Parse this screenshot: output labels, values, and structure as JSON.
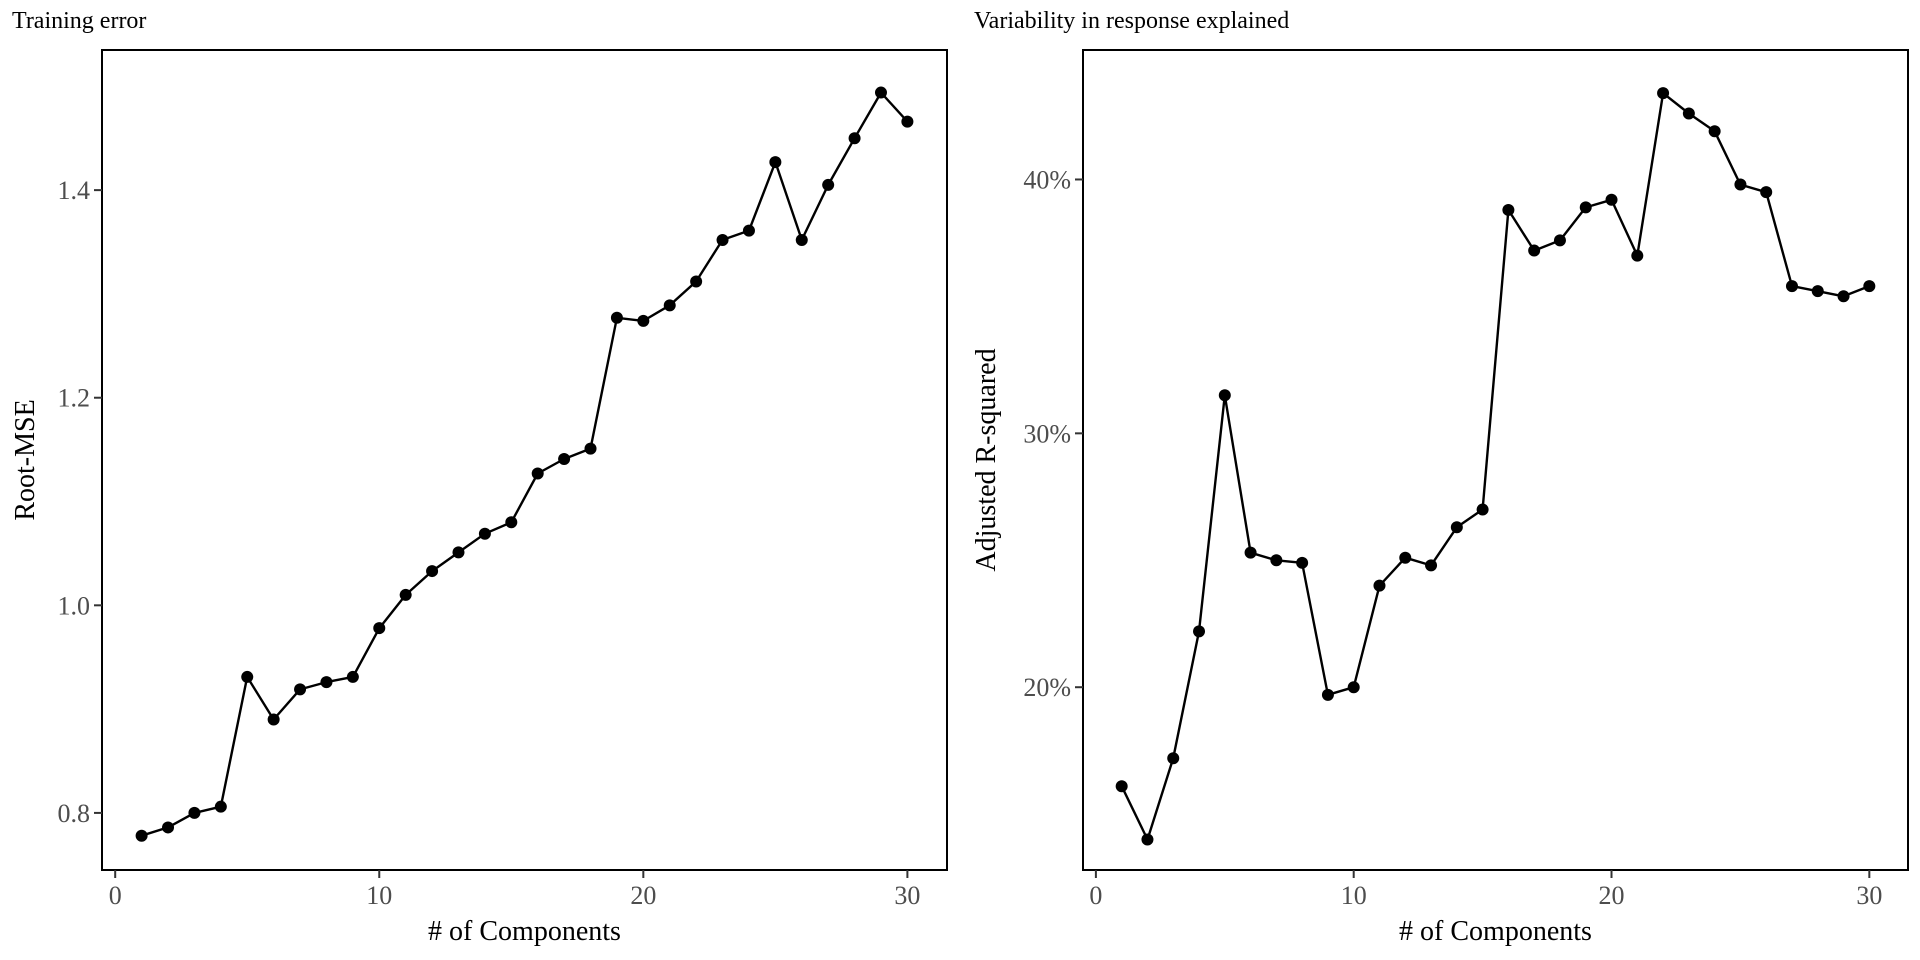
{
  "chart_data": [
    {
      "type": "line",
      "title": "Training error",
      "xlabel": "# of Components",
      "ylabel": "Root-MSE",
      "xlim": [
        -0.5,
        31.5
      ],
      "ylim": [
        0.745,
        1.535
      ],
      "xticks": [
        0,
        10,
        20,
        30
      ],
      "xtick_labels": [
        "0",
        "10",
        "20",
        "30"
      ],
      "yticks": [
        0.8,
        1.0,
        1.2,
        1.4
      ],
      "ytick_labels": [
        "0.8",
        "1.0",
        "1.2",
        "1.4"
      ],
      "grid": false,
      "series": [
        {
          "color": "#000000",
          "x": [
            1,
            2,
            3,
            4,
            5,
            6,
            7,
            8,
            9,
            10,
            11,
            12,
            13,
            14,
            15,
            16,
            17,
            18,
            19,
            20,
            21,
            22,
            23,
            24,
            25,
            26,
            27,
            28,
            29,
            30
          ],
          "y": [
            0.778,
            0.786,
            0.8,
            0.806,
            0.931,
            0.89,
            0.919,
            0.926,
            0.931,
            0.978,
            1.01,
            1.033,
            1.051,
            1.069,
            1.08,
            1.127,
            1.141,
            1.151,
            1.277,
            1.274,
            1.289,
            1.312,
            1.352,
            1.361,
            1.427,
            1.352,
            1.405,
            1.45,
            1.494,
            1.466
          ]
        }
      ]
    },
    {
      "type": "line",
      "title": "Variability in response explained",
      "xlabel": "# of Components",
      "ylabel": "Adjusted R-squared",
      "xlim": [
        -0.5,
        31.5
      ],
      "ylim": [
        12.8,
        45.1
      ],
      "xticks": [
        0,
        10,
        20,
        30
      ],
      "xtick_labels": [
        "0",
        "10",
        "20",
        "30"
      ],
      "yticks": [
        20,
        30,
        40
      ],
      "ytick_labels": [
        "20%",
        "30%",
        "40%"
      ],
      "grid": false,
      "series": [
        {
          "color": "#000000",
          "x": [
            1,
            2,
            3,
            4,
            5,
            6,
            7,
            8,
            9,
            10,
            11,
            12,
            13,
            14,
            15,
            16,
            17,
            18,
            19,
            20,
            21,
            22,
            23,
            24,
            25,
            26,
            27,
            28,
            29,
            30
          ],
          "y": [
            16.1,
            14.0,
            17.2,
            22.2,
            31.5,
            25.3,
            25.0,
            24.9,
            19.7,
            20.0,
            24.0,
            25.1,
            24.8,
            26.3,
            27.0,
            38.8,
            37.2,
            37.6,
            38.9,
            39.2,
            37.0,
            43.4,
            42.6,
            41.9,
            39.8,
            39.5,
            35.8,
            35.6,
            35.4,
            35.8
          ]
        }
      ]
    }
  ]
}
